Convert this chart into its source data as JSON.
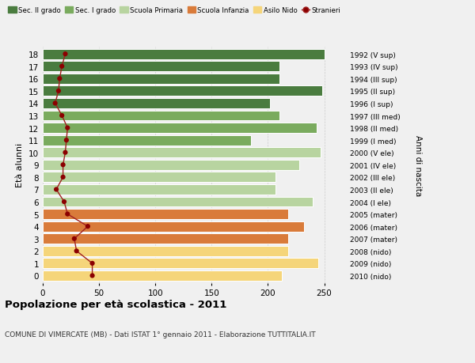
{
  "ages": [
    18,
    17,
    16,
    15,
    14,
    13,
    12,
    11,
    10,
    9,
    8,
    7,
    6,
    5,
    4,
    3,
    2,
    1,
    0
  ],
  "right_labels": [
    "1992 (V sup)",
    "1993 (IV sup)",
    "1994 (III sup)",
    "1995 (II sup)",
    "1996 (I sup)",
    "1997 (III med)",
    "1998 (II med)",
    "1999 (I med)",
    "2000 (V ele)",
    "2001 (IV ele)",
    "2002 (III ele)",
    "2003 (II ele)",
    "2004 (I ele)",
    "2005 (mater)",
    "2006 (mater)",
    "2007 (mater)",
    "2008 (nido)",
    "2009 (nido)",
    "2010 (nido)"
  ],
  "bar_values": [
    250,
    210,
    210,
    248,
    202,
    210,
    243,
    185,
    247,
    228,
    207,
    207,
    240,
    218,
    232,
    218,
    218,
    245,
    212
  ],
  "stranieri_values": [
    20,
    17,
    15,
    14,
    11,
    17,
    22,
    21,
    20,
    18,
    18,
    12,
    19,
    22,
    40,
    28,
    30,
    44,
    44
  ],
  "colors": {
    "sec2": "#4a7c3f",
    "sec1": "#7aab5e",
    "primaria": "#b8d4a0",
    "infanzia": "#d97b3a",
    "nido": "#f5d57a",
    "stranieri_dot": "#8b0000",
    "stranieri_line": "#a02020",
    "background": "#f0f0f0",
    "grid": "#cccccc"
  },
  "legend_labels": [
    "Sec. II grado",
    "Sec. I grado",
    "Scuola Primaria",
    "Scuola Infanzia",
    "Asilo Nido",
    "Stranieri"
  ],
  "title": "Popolazione per età scolastica - 2011",
  "subtitle": "COMUNE DI VIMERCATE (MB) - Dati ISTAT 1° gennaio 2011 - Elaborazione TUTTITALIA.IT",
  "ylabel": "Età alunni",
  "ylabel_right": "Anni di nascita",
  "xlim": [
    0,
    270
  ],
  "xticks": [
    0,
    50,
    100,
    150,
    200,
    250
  ]
}
